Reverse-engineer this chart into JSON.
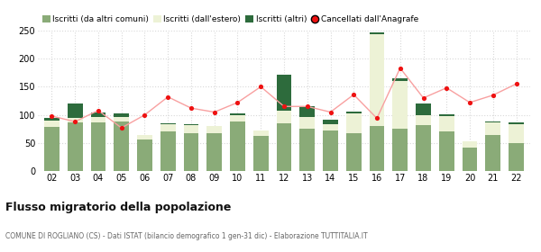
{
  "years": [
    "02",
    "03",
    "04",
    "05",
    "06",
    "07",
    "08",
    "09",
    "10",
    "11",
    "12",
    "13",
    "14",
    "15",
    "16",
    "17",
    "18",
    "19",
    "20",
    "21",
    "22"
  ],
  "iscritti_comuni": [
    78,
    87,
    87,
    88,
    57,
    70,
    68,
    67,
    88,
    63,
    85,
    75,
    72,
    68,
    80,
    75,
    82,
    70,
    42,
    65,
    50
  ],
  "iscritti_estero": [
    12,
    8,
    10,
    8,
    8,
    13,
    14,
    13,
    12,
    10,
    22,
    22,
    12,
    35,
    163,
    85,
    17,
    28,
    12,
    22,
    33
  ],
  "iscritti_altri": [
    5,
    25,
    7,
    7,
    0,
    2,
    2,
    0,
    2,
    0,
    65,
    18,
    7,
    3,
    3,
    5,
    22,
    3,
    0,
    2,
    3
  ],
  "cancellati": [
    98,
    88,
    108,
    77,
    100,
    132,
    112,
    105,
    122,
    150,
    115,
    115,
    105,
    136,
    94,
    183,
    130,
    148,
    122,
    135,
    155
  ],
  "color_comuni": "#8aab78",
  "color_estero": "#edf2d6",
  "color_altri": "#2d6b3c",
  "color_cancellati": "#ee1111",
  "color_line": "#f8a0a0",
  "title": "Flusso migratorio della popolazione",
  "subtitle": "COMUNE DI ROGLIANO (CS) - Dati ISTAT (bilancio demografico 1 gen-31 dic) - Elaborazione TUTTITALIA.IT",
  "legend_entries": [
    "Iscritti (da altri comuni)",
    "Iscritti (dall'estero)",
    "Iscritti (altri)",
    "Cancellati dall'Anagrafe"
  ],
  "ylim": [
    0,
    250
  ],
  "yticks": [
    0,
    50,
    100,
    150,
    200,
    250
  ],
  "bg_color": "#ffffff",
  "grid_color": "#d8d8d8"
}
